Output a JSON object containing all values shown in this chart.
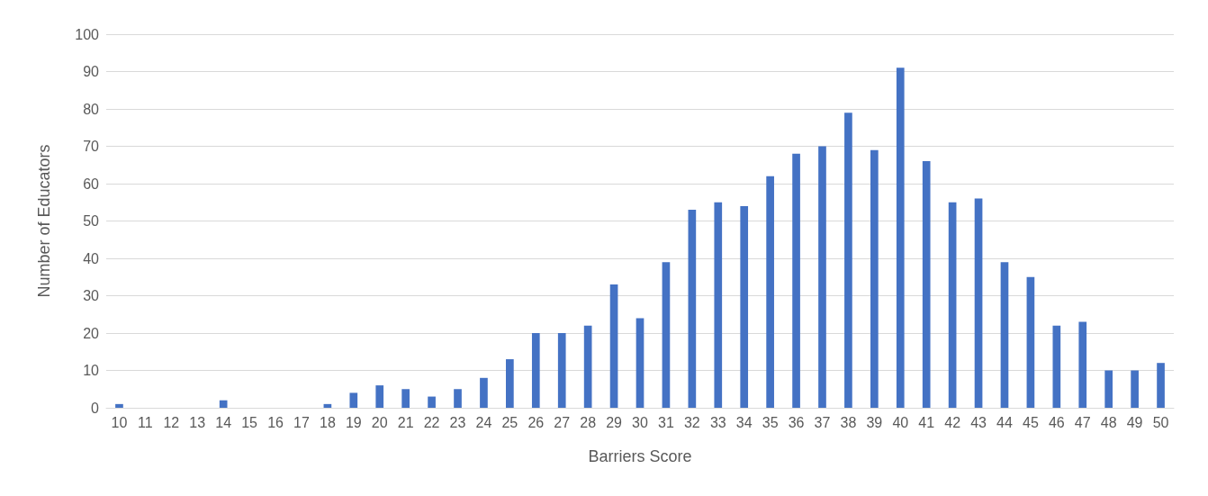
{
  "chart_data": {
    "type": "bar",
    "xlabel": "Barriers Score",
    "ylabel": "Number of Educators",
    "categories": [
      "10",
      "11",
      "12",
      "13",
      "14",
      "15",
      "16",
      "17",
      "18",
      "19",
      "20",
      "21",
      "22",
      "23",
      "24",
      "25",
      "26",
      "27",
      "28",
      "29",
      "30",
      "31",
      "32",
      "33",
      "34",
      "35",
      "36",
      "37",
      "38",
      "39",
      "40",
      "41",
      "42",
      "43",
      "44",
      "45",
      "46",
      "47",
      "48",
      "49",
      "50"
    ],
    "values": [
      1,
      0,
      0,
      0,
      2,
      0,
      0,
      0,
      1,
      4,
      6,
      5,
      3,
      5,
      8,
      13,
      20,
      20,
      22,
      33,
      24,
      39,
      53,
      55,
      54,
      62,
      68,
      70,
      79,
      69,
      91,
      66,
      55,
      56,
      39,
      35,
      22,
      23,
      10,
      10,
      12
    ],
    "color": "#4472c4",
    "ylim": [
      0,
      100
    ],
    "yticks": [
      0,
      10,
      20,
      30,
      40,
      50,
      60,
      70,
      80,
      90,
      100
    ],
    "grid": "y"
  }
}
